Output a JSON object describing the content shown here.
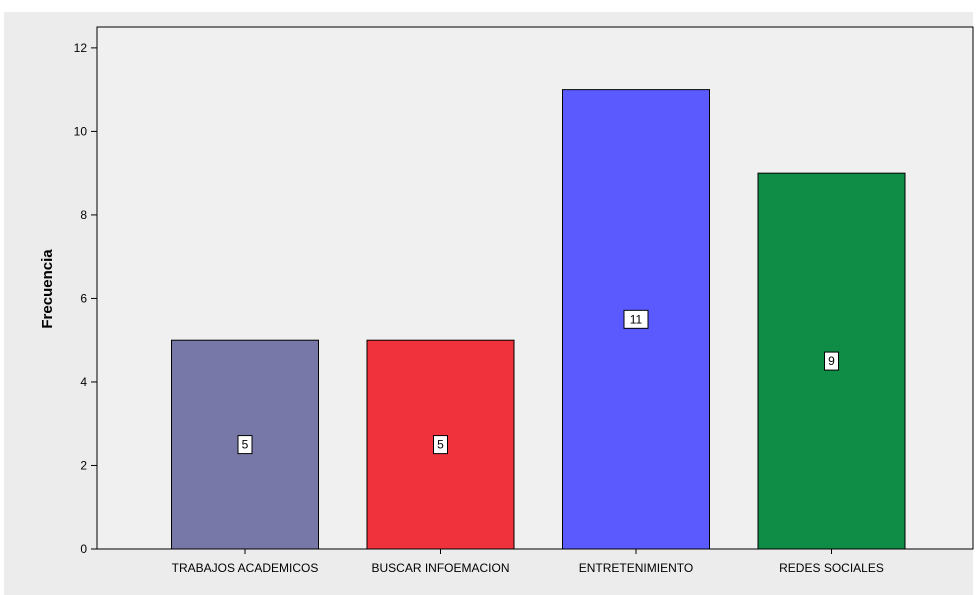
{
  "chart_data": {
    "type": "bar",
    "title": "",
    "xlabel": "",
    "ylabel": "Frecuencia",
    "categories": [
      "TRABAJOS ACADEMICOS",
      "BUSCAR INFOEMACION",
      "ENTRETENIMIENTO",
      "REDES SOCIALES"
    ],
    "values": [
      5,
      5,
      11,
      9
    ],
    "data_labels": [
      "5",
      "5",
      "11",
      "9"
    ],
    "bar_colors": [
      "#7878a8",
      "#f0323c",
      "#5a5aff",
      "#0f8c46"
    ],
    "ylim": [
      0,
      12.5
    ],
    "yticks": [
      0,
      2,
      4,
      6,
      8,
      10,
      12
    ],
    "ytick_labels": [
      "0",
      "2",
      "4",
      "6",
      "8",
      "10",
      "12"
    ],
    "grid": false,
    "legend": "none",
    "plot_background": "#f0f0f0",
    "frame_background": "#ececec"
  }
}
